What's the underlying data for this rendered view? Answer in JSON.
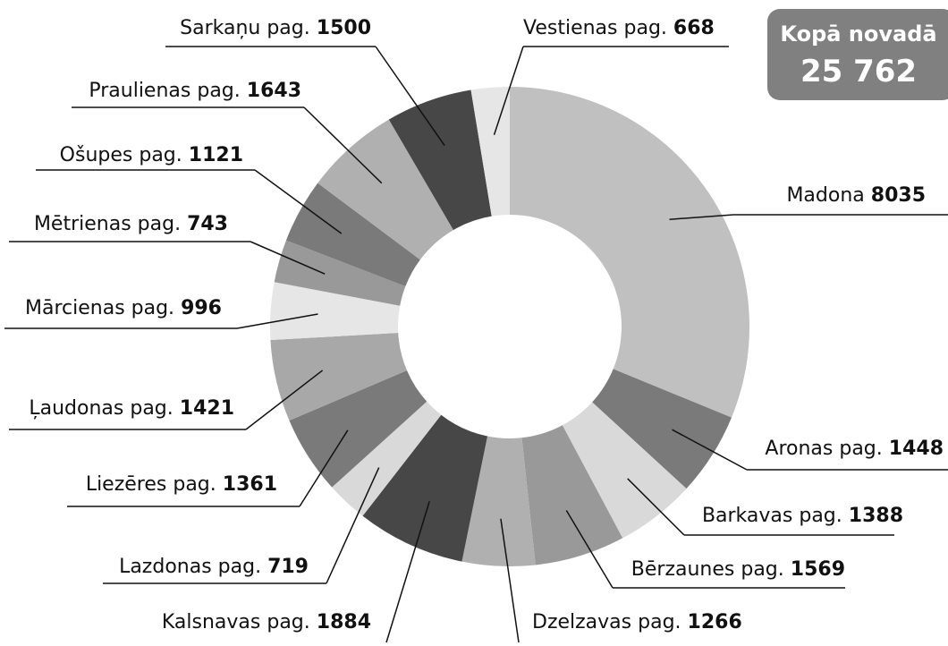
{
  "chart_data": {
    "type": "donut",
    "categories": [
      "Madona",
      "Aronas pag.",
      "Barkavas pag.",
      "Bērzaunes pag.",
      "Dzelzavas pag.",
      "Kalsnavas pag.",
      "Lazdonas pag.",
      "Liezēres pag.",
      "Ļaudonas pag.",
      "Mārcienas pag.",
      "Mētrienas pag.",
      "Ošupes pag.",
      "Praulienas pag.",
      "Sarkaņu pag.",
      "Vestienas pag."
    ],
    "values": [
      8035,
      1448,
      1388,
      1569,
      1266,
      1884,
      719,
      1361,
      1421,
      996,
      743,
      1121,
      1643,
      1500,
      668
    ],
    "colors": [
      "#c0c0c0",
      "#7a7a7a",
      "#d9d9d9",
      "#999999",
      "#b0b0b0",
      "#474747",
      "#d9d9d9",
      "#7a7a7a",
      "#a8a8a8",
      "#e6e6e6",
      "#999999",
      "#7a7a7a",
      "#b0b0b0",
      "#474747",
      "#e6e6e6"
    ],
    "total_title": "Kopā novadā",
    "total": {
      "value": 25762,
      "label": "25 762"
    }
  }
}
